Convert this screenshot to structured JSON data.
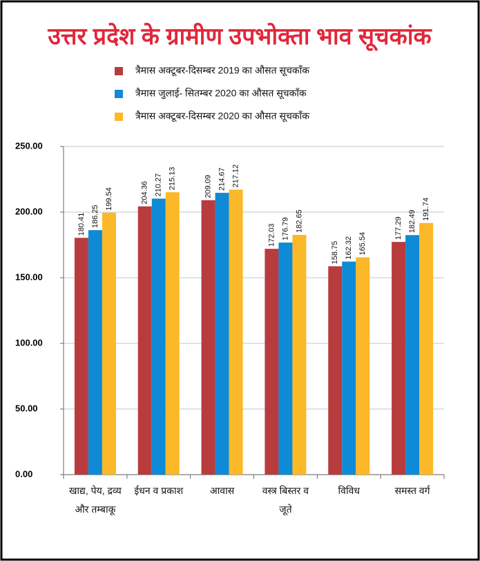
{
  "chart_data": {
    "type": "bar",
    "title": "उत्तर प्रदेश के  ग्रामीण उपभोक्ता भाव सूचकांक",
    "categories": [
      "खाद्य, पेय, द्रव्य और तम्बाकू",
      "ईधन व प्रकाश",
      "आवास",
      "वस्त्र बिस्तर व जूते",
      "विविध",
      "समस्त वर्ग"
    ],
    "series": [
      {
        "name": "त्रैमास अक्टूबर-दिसम्बर 2019 का औसत सूचकाँक",
        "color": "#b83c3e",
        "values": [
          180.41,
          204.36,
          209.09,
          172.03,
          158.75,
          177.29
        ]
      },
      {
        "name": "त्रैमास जुलाई- सितम्बर 2020 का औसत सूचकाँक",
        "color": "#0f8ad6",
        "values": [
          186.25,
          210.27,
          214.67,
          176.79,
          162.32,
          182.49
        ]
      },
      {
        "name": "त्रैमास अक्टूबर-दिसम्बर 2020 का औसत सूचकाँक",
        "color": "#fbb828",
        "values": [
          199.54,
          215.13,
          217.12,
          182.65,
          165.54,
          191.74
        ]
      }
    ],
    "ylim": [
      0,
      250
    ],
    "yticks": [
      {
        "value": 0,
        "label": "0.00"
      },
      {
        "value": 50,
        "label": "50.00"
      },
      {
        "value": 100,
        "label": "100.00"
      },
      {
        "value": 150,
        "label": "150.00"
      },
      {
        "value": 200,
        "label": "200.00"
      },
      {
        "value": 250,
        "label": "250.00"
      }
    ],
    "grid": true
  }
}
